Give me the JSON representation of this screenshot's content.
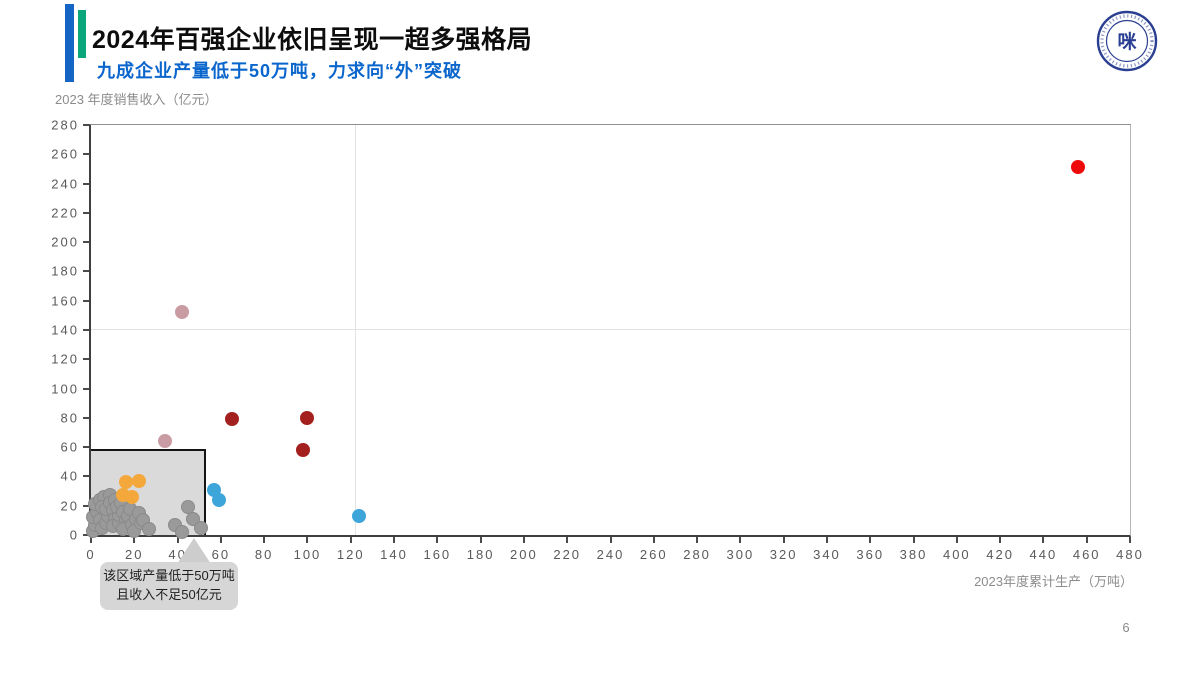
{
  "slide": {
    "title": "2024年百强企业依旧呈现一超多强格局",
    "subtitle": "九成企业产量低于50万吨，力求向“外”突破",
    "page_number": "6"
  },
  "logo": {
    "name": "association-round-seal",
    "ring_color": "#2b3f92",
    "glyph": "咪"
  },
  "chart_data": {
    "type": "scatter",
    "xlabel": "2023年度累计生产（万吨）",
    "ylabel": "2023 年度销售收入（亿元）",
    "xlim": [
      0,
      480
    ],
    "ylim": [
      0,
      280
    ],
    "x_ticks": [
      0,
      20,
      40,
      60,
      80,
      100,
      120,
      140,
      160,
      180,
      200,
      220,
      240,
      260,
      280,
      300,
      320,
      340,
      360,
      380,
      400,
      420,
      440,
      460,
      480
    ],
    "y_ticks": [
      0,
      20,
      40,
      60,
      80,
      100,
      120,
      140,
      160,
      180,
      200,
      220,
      240,
      260,
      280
    ],
    "grid": {
      "horizontal_y": 140,
      "vertical_x": 122
    },
    "highlight_region": {
      "x0": 0,
      "y0": 0,
      "x1": 53,
      "y1": 59
    },
    "series": [
      {
        "name": "gray-cluster",
        "color": "#9a9a9a",
        "points": [
          [
            1,
            3
          ],
          [
            2,
            7
          ],
          [
            1,
            12
          ],
          [
            3,
            16
          ],
          [
            2,
            21
          ],
          [
            4,
            24
          ],
          [
            6,
            26
          ],
          [
            9,
            27
          ],
          [
            5,
            19
          ],
          [
            4,
            10
          ],
          [
            5,
            5
          ],
          [
            7,
            8
          ],
          [
            8,
            13
          ],
          [
            7,
            18
          ],
          [
            9,
            22
          ],
          [
            11,
            24
          ],
          [
            10,
            17
          ],
          [
            11,
            11
          ],
          [
            10,
            6
          ],
          [
            13,
            8
          ],
          [
            13,
            14
          ],
          [
            12,
            19
          ],
          [
            14,
            22
          ],
          [
            15,
            16
          ],
          [
            16,
            10
          ],
          [
            15,
            4
          ],
          [
            17,
            13
          ],
          [
            18,
            18
          ],
          [
            19,
            7
          ],
          [
            21,
            11
          ],
          [
            22,
            15
          ],
          [
            20,
            3
          ],
          [
            23,
            8
          ],
          [
            24,
            10
          ],
          [
            27,
            4
          ],
          [
            39,
            7
          ],
          [
            42,
            2
          ],
          [
            45,
            19
          ],
          [
            47,
            11
          ],
          [
            51,
            5
          ]
        ]
      },
      {
        "name": "pink",
        "color": "#c99ca4",
        "points": [
          [
            42,
            152
          ],
          [
            34,
            64
          ]
        ]
      },
      {
        "name": "blue",
        "color": "#3ea5da",
        "points": [
          [
            57,
            31
          ],
          [
            59,
            24
          ],
          [
            124,
            13
          ]
        ]
      },
      {
        "name": "orange",
        "color": "#f4a83c",
        "points": [
          [
            16,
            36
          ],
          [
            22,
            37
          ],
          [
            15,
            27
          ],
          [
            19,
            26
          ]
        ]
      },
      {
        "name": "dark-red",
        "color": "#a3201f",
        "points": [
          [
            65,
            79
          ],
          [
            100,
            80
          ],
          [
            98,
            58
          ]
        ]
      },
      {
        "name": "leader-red",
        "color": "#ee0a0a",
        "points": [
          [
            456,
            251
          ]
        ]
      }
    ],
    "annotation": {
      "line1": "该区域产量低于50万吨",
      "line2": "且收入不足50亿元"
    }
  }
}
